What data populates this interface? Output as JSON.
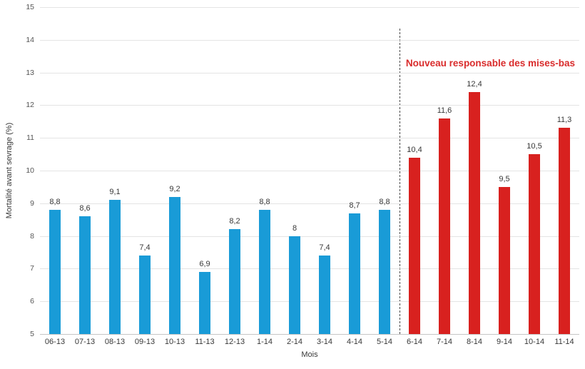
{
  "chart_data": {
    "type": "bar",
    "title": "",
    "xlabel": "Mois",
    "ylabel": "Mortalité avant sevrage (%)",
    "ylim": [
      5,
      15
    ],
    "yticks": [
      "5",
      "6",
      "7",
      "8",
      "9",
      "10",
      "11",
      "12",
      "13",
      "14",
      "15"
    ],
    "grid": true,
    "legend": "none",
    "decimal_separator": ",",
    "annotation": {
      "text": "Nouveau responsable des mises-bas",
      "color": "#d92b2b"
    },
    "separator": {
      "style": "dashed",
      "between": [
        "5-14",
        "6-14"
      ]
    },
    "colors": {
      "before": "#199bd7",
      "after": "#d8211f"
    },
    "bars": [
      {
        "category": "06-13",
        "value": 8.8,
        "label": "8,8",
        "group": "before"
      },
      {
        "category": "07-13",
        "value": 8.6,
        "label": "8,6",
        "group": "before"
      },
      {
        "category": "08-13",
        "value": 9.1,
        "label": "9,1",
        "group": "before"
      },
      {
        "category": "09-13",
        "value": 7.4,
        "label": "7,4",
        "group": "before"
      },
      {
        "category": "10-13",
        "value": 9.2,
        "label": "9,2",
        "group": "before"
      },
      {
        "category": "11-13",
        "value": 6.9,
        "label": "6,9",
        "group": "before"
      },
      {
        "category": "12-13",
        "value": 8.2,
        "label": "8,2",
        "group": "before"
      },
      {
        "category": "1-14",
        "value": 8.8,
        "label": "8,8",
        "group": "before"
      },
      {
        "category": "2-14",
        "value": 8,
        "label": "8",
        "group": "before"
      },
      {
        "category": "3-14",
        "value": 7.4,
        "label": "7,4",
        "group": "before"
      },
      {
        "category": "4-14",
        "value": 8.7,
        "label": "8,7",
        "group": "before"
      },
      {
        "category": "5-14",
        "value": 8.8,
        "label": "8,8",
        "group": "before"
      },
      {
        "category": "6-14",
        "value": 10.4,
        "label": "10,4",
        "group": "after"
      },
      {
        "category": "7-14",
        "value": 11.6,
        "label": "11,6",
        "group": "after"
      },
      {
        "category": "8-14",
        "value": 12.4,
        "label": "12,4",
        "group": "after"
      },
      {
        "category": "9-14",
        "value": 9.5,
        "label": "9,5",
        "group": "after"
      },
      {
        "category": "10-14",
        "value": 10.5,
        "label": "10,5",
        "group": "after"
      },
      {
        "category": "11-14",
        "value": 11.3,
        "label": "11,3",
        "group": "after"
      }
    ]
  }
}
